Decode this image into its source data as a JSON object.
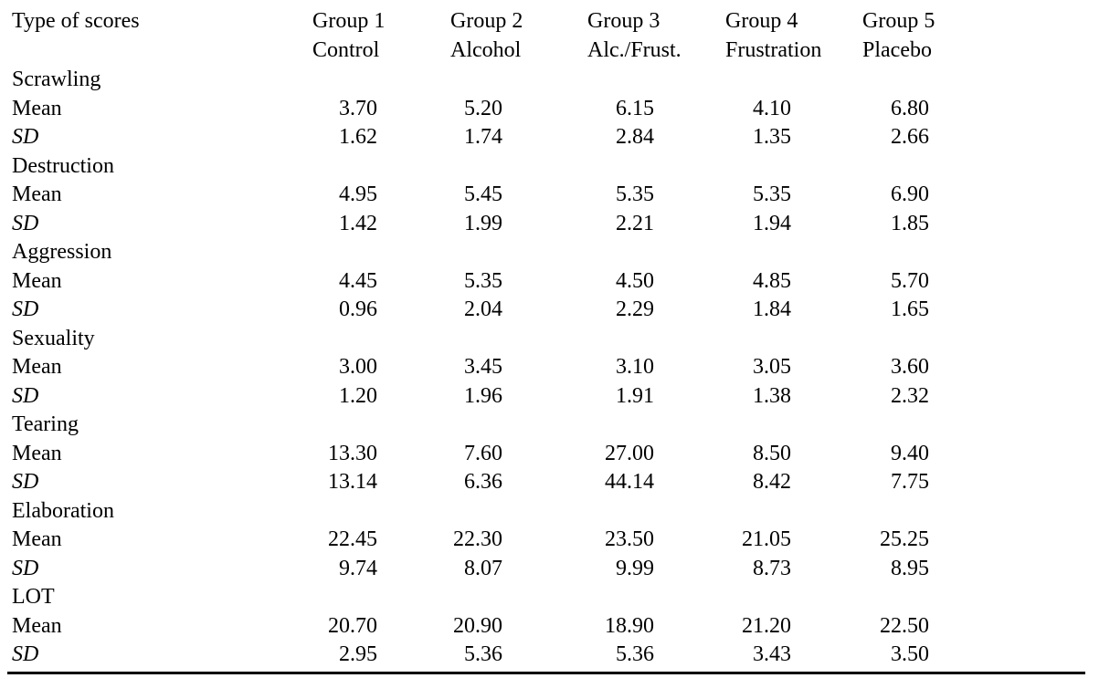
{
  "table": {
    "header_title": "Type of scores",
    "groups": [
      {
        "line1": "Group 1",
        "line2": "Control"
      },
      {
        "line1": "Group 2",
        "line2": "Alcohol"
      },
      {
        "line1": "Group 3",
        "line2": "Alc./Frust."
      },
      {
        "line1": "Group 4",
        "line2": "Frustration"
      },
      {
        "line1": "Group 5",
        "line2": "Placebo"
      }
    ],
    "sections": [
      {
        "name": "Scrawling",
        "mean_label": "Mean",
        "sd_label": "SD",
        "mean": [
          "3.70",
          "5.20",
          "6.15",
          "4.10",
          "6.80"
        ],
        "sd": [
          "1.62",
          "1.74",
          "2.84",
          "1.35",
          "2.66"
        ]
      },
      {
        "name": "Destruction",
        "mean_label": "Mean",
        "sd_label": "SD",
        "mean": [
          "4.95",
          "5.45",
          "5.35",
          "5.35",
          "6.90"
        ],
        "sd": [
          "1.42",
          "1.99",
          "2.21",
          "1.94",
          "1.85"
        ]
      },
      {
        "name": "Aggression",
        "mean_label": "Mean",
        "sd_label": "SD",
        "mean": [
          "4.45",
          "5.35",
          "4.50",
          "4.85",
          "5.70"
        ],
        "sd": [
          "0.96",
          "2.04",
          "2.29",
          "1.84",
          "1.65"
        ]
      },
      {
        "name": "Sexuality",
        "mean_label": "Mean",
        "sd_label": "SD",
        "mean": [
          "3.00",
          "3.45",
          "3.10",
          "3.05",
          "3.60"
        ],
        "sd": [
          "1.20",
          "1.96",
          "1.91",
          "1.38",
          "2.32"
        ]
      },
      {
        "name": "Tearing",
        "mean_label": "Mean",
        "sd_label": "SD",
        "mean": [
          "13.30",
          "7.60",
          "27.00",
          "8.50",
          "9.40"
        ],
        "sd": [
          "13.14",
          "6.36",
          "44.14",
          "8.42",
          "7.75"
        ]
      },
      {
        "name": "Elaboration",
        "mean_label": "Mean",
        "sd_label": "SD",
        "mean": [
          "22.45",
          "22.30",
          "23.50",
          "21.05",
          "25.25"
        ],
        "sd": [
          "9.74",
          "8.07",
          "9.99",
          "8.73",
          "8.95"
        ]
      },
      {
        "name": "LOT",
        "mean_label": "Mean",
        "sd_label": "SD",
        "mean": [
          "20.70",
          "20.90",
          "18.90",
          "21.20",
          "22.50"
        ],
        "sd": [
          "2.95",
          "5.36",
          "5.36",
          "3.43",
          "3.50"
        ]
      }
    ]
  }
}
